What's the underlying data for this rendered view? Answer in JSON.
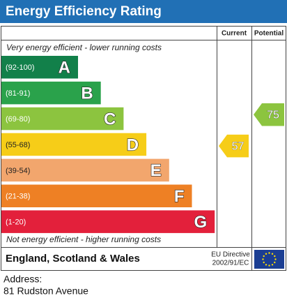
{
  "header": {
    "title": "Energy Efficiency Rating",
    "columns": [
      "Current",
      "Potential"
    ]
  },
  "top_note": "Very energy efficient - lower running costs",
  "bottom_note": "Not energy efficient - higher running costs",
  "bands": [
    {
      "range": "(92-100)",
      "letter": "A",
      "color": "#12804a"
    },
    {
      "range": "(81-91)",
      "letter": "B",
      "color": "#2aa24b"
    },
    {
      "range": "(69-80)",
      "letter": "C",
      "color": "#8cc43f"
    },
    {
      "range": "(55-68)",
      "letter": "D",
      "color": "#f6cd18"
    },
    {
      "range": "(39-54)",
      "letter": "E",
      "color": "#f2a66d"
    },
    {
      "range": "(21-38)",
      "letter": "F",
      "color": "#ee8024"
    },
    {
      "range": "(1-20)",
      "letter": "G",
      "color": "#e3203b"
    }
  ],
  "current": 57,
  "potential": 75,
  "footer": {
    "region": "England, Scotland & Wales",
    "directive": [
      "EU Directive",
      "2002/91/EC"
    ]
  },
  "address": [
    "Address:",
    "81 Rudston Avenue"
  ]
}
